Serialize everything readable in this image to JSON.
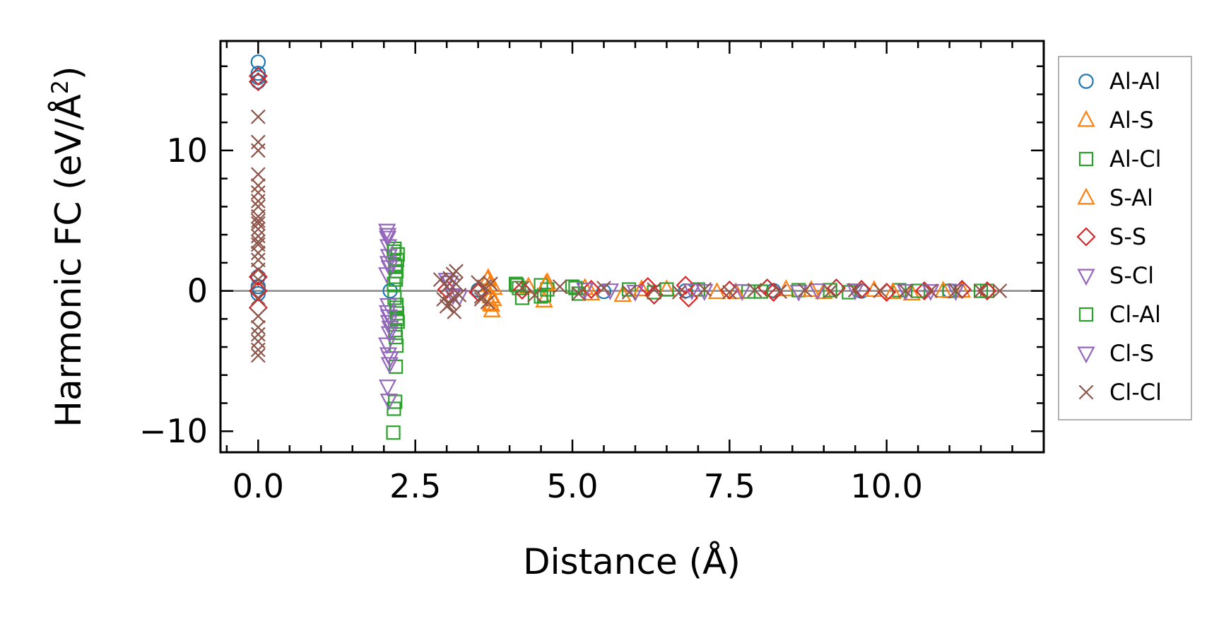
{
  "chart_data": {
    "type": "scatter",
    "title": "",
    "xlabel": "Distance (Å)",
    "ylabel": "Harmonic FC (eV/Å²)",
    "ylabel_parts": {
      "main": "Harmonic FC (eV/Å",
      "sup": "2",
      "close": ")"
    },
    "xlim": [
      -0.6,
      12.5
    ],
    "ylim": [
      -11.5,
      17.8
    ],
    "xticks": [
      0.0,
      2.5,
      5.0,
      7.5,
      10.0
    ],
    "xtick_labels": [
      "0.0",
      "2.5",
      "5.0",
      "7.5",
      "10.0"
    ],
    "yticks": [
      -10,
      0,
      10
    ],
    "ytick_labels": [
      "−10",
      "0",
      "10"
    ],
    "zero_line": true,
    "legend_position": "right-outside",
    "series": [
      {
        "name": "Al-Al",
        "marker": "circle",
        "color": "#1f77b4",
        "x": [
          0,
          0,
          0,
          0,
          0,
          0,
          0,
          2.1,
          3.5,
          5.5,
          6.8,
          8.2,
          9.6,
          11.0
        ],
        "y": [
          16.3,
          15.5,
          14.9,
          15.2,
          0.3,
          -0.2,
          1.0,
          0.0,
          0.05,
          -0.05,
          0.0,
          0.02,
          -0.02,
          0.0
        ]
      },
      {
        "name": "Al-S",
        "marker": "triangle-up",
        "color": "#ff7f0e",
        "x": [
          3.65,
          3.68,
          3.7,
          3.72,
          3.75,
          3.7,
          4.6,
          4.55,
          4.3,
          5.2,
          5.8,
          6.5,
          7.3,
          8.4,
          9.0,
          9.8,
          10.4,
          11.2
        ],
        "y": [
          0.8,
          0.4,
          -0.9,
          -1.4,
          0.2,
          -0.4,
          0.6,
          -0.7,
          0.3,
          0.2,
          -0.3,
          0.1,
          -0.1,
          0.1,
          -0.1,
          0.05,
          -0.2,
          0.0
        ]
      },
      {
        "name": "Al-Cl",
        "marker": "square",
        "color": "#2ca02c",
        "x": [
          2.15,
          2.16,
          2.18,
          2.19,
          2.2,
          2.17,
          2.22,
          2.21,
          2.18,
          2.2,
          2.19,
          2.16,
          2.17,
          2.2,
          2.21,
          2.22,
          2.18,
          2.19,
          4.1,
          4.15,
          4.2,
          4.5,
          4.55,
          4.6,
          5.0,
          5.1,
          5.9,
          6.3,
          7.0,
          7.8,
          8.6,
          9.4,
          10.2,
          11.0,
          11.6
        ],
        "y": [
          -10.1,
          -8.4,
          -7.9,
          -5.4,
          -3.9,
          3.0,
          2.6,
          2.2,
          1.8,
          1.4,
          1.0,
          0.5,
          -0.5,
          -1.0,
          -1.6,
          -2.2,
          -2.8,
          -3.3,
          0.5,
          0.2,
          -0.5,
          0.4,
          -0.3,
          0.1,
          0.3,
          -0.2,
          0.1,
          -0.1,
          0.1,
          -0.05,
          0.05,
          -0.1,
          0.05,
          0.0,
          0.0
        ]
      },
      {
        "name": "S-Al",
        "marker": "triangle-up",
        "color": "#ff7f0e",
        "x": [
          3.66,
          3.71,
          3.74,
          4.58,
          5.3,
          6.1,
          7.6,
          8.8,
          10.1,
          10.9
        ],
        "y": [
          0.9,
          -1.0,
          -0.6,
          0.5,
          -0.2,
          0.1,
          -0.1,
          0.05,
          -0.1,
          0.0
        ]
      },
      {
        "name": "S-S",
        "marker": "diamond",
        "color": "#d62728",
        "x": [
          0,
          0,
          0,
          0,
          0,
          3.0,
          3.5,
          4.2,
          5.3,
          6.2,
          6.3,
          6.8,
          6.85,
          7.5,
          8.1,
          8.2,
          9.2,
          9.6,
          10.0,
          10.6,
          11.2,
          11.6
        ],
        "y": [
          15.3,
          14.9,
          0.0,
          -1.2,
          1.0,
          0.1,
          -0.1,
          0.05,
          0.1,
          0.3,
          -0.3,
          0.4,
          -0.5,
          0.05,
          0.2,
          -0.1,
          0.2,
          0.1,
          -0.1,
          0.0,
          0.1,
          0.0
        ],
        "filled_at_zero": false
      },
      {
        "name": "S-Cl",
        "marker": "triangle-down",
        "color": "#9467bd",
        "x": [
          2.05,
          2.06,
          2.07,
          2.08,
          2.09,
          2.05,
          2.07,
          2.06,
          2.08,
          2.1,
          2.05,
          2.07,
          2.09,
          2.06,
          2.08,
          3.0,
          3.1,
          5.2,
          6.0,
          6.9,
          7.7,
          8.6,
          9.5,
          10.3,
          11.1
        ],
        "y": [
          4.3,
          3.8,
          3.2,
          2.5,
          1.7,
          1.2,
          -1.0,
          -1.5,
          -2.2,
          -2.6,
          -3.8,
          -4.5,
          -5.2,
          -6.8,
          -7.8,
          0.8,
          -0.3,
          0.1,
          -0.05,
          0.05,
          0.0,
          -0.05,
          0.05,
          0.0,
          0.0
        ]
      },
      {
        "name": "Cl-Al",
        "marker": "square",
        "color": "#2ca02c",
        "x": [
          2.16,
          2.2,
          2.19,
          2.21,
          4.12,
          4.5,
          5.05,
          6.5,
          8.0,
          9.1,
          10.5,
          11.5
        ],
        "y": [
          2.8,
          -1.2,
          0.8,
          -2.0,
          0.4,
          -0.4,
          0.2,
          0.1,
          -0.05,
          0.05,
          0.0,
          0.0
        ]
      },
      {
        "name": "Cl-S",
        "marker": "triangle-down",
        "color": "#9467bd",
        "x": [
          2.06,
          2.07,
          2.08,
          2.09,
          2.1,
          3.05,
          3.2,
          5.6,
          7.1,
          8.9,
          10.7
        ],
        "y": [
          4.0,
          2.0,
          -1.8,
          -3.0,
          -4.8,
          0.6,
          -0.4,
          0.05,
          0.0,
          0.05,
          0.0
        ]
      },
      {
        "name": "Cl-Cl",
        "marker": "x",
        "color": "#8c564b",
        "x": [
          0,
          0,
          0,
          0,
          0,
          0,
          0,
          0,
          0,
          0,
          0,
          0,
          0,
          0,
          0,
          0,
          0,
          0,
          0,
          0,
          0,
          0,
          0,
          0,
          0,
          0,
          2.9,
          2.95,
          3.0,
          3.05,
          3.1,
          3.12,
          3.15,
          3.2,
          3.0,
          3.05,
          3.1,
          3.15,
          3.5,
          3.55,
          3.6,
          3.65,
          3.7,
          3.55,
          4.2,
          4.4,
          4.8,
          5.1,
          5.5,
          5.9,
          6.3,
          6.7,
          7.1,
          7.5,
          7.9,
          8.3,
          8.7,
          9.1,
          9.5,
          9.9,
          10.3,
          10.7,
          11.1,
          11.5,
          11.8
        ],
        "y": [
          12.4,
          10.6,
          10.0,
          8.3,
          7.5,
          7.0,
          6.4,
          5.3,
          4.8,
          4.4,
          3.9,
          3.3,
          2.7,
          2.2,
          1.5,
          0.8,
          -0.5,
          -1.8,
          -2.6,
          -3.1,
          -3.6,
          -4.2,
          -4.6,
          6.0,
          5.0,
          3.5,
          0.8,
          -0.6,
          0.3,
          -0.9,
          1.2,
          -1.5,
          0.5,
          -0.3,
          -1.1,
          0.9,
          -0.5,
          1.4,
          0.6,
          -0.4,
          0.3,
          -0.8,
          0.5,
          -0.6,
          0.2,
          -0.3,
          0.3,
          -0.2,
          0.2,
          -0.1,
          0.1,
          -0.1,
          0.1,
          -0.1,
          0.05,
          -0.05,
          0.05,
          -0.05,
          0.05,
          0.0,
          0.0,
          0.0,
          0.0,
          0.0,
          0.0
        ]
      }
    ]
  }
}
